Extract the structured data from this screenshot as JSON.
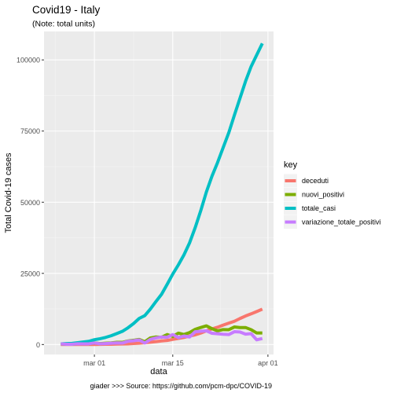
{
  "chart_data": {
    "type": "line",
    "title": "Covid19 - Italy",
    "subtitle": "(Note: total units)",
    "xlabel": "data",
    "ylabel": "Total Covid-19 cases",
    "caption": "giader >>> Source: https://github.com/pcm-dpc/COVID-19",
    "x_range": [
      "2020-02-21",
      "2020-04-02"
    ],
    "ylim": [
      -3500,
      110000
    ],
    "x_ticks": [
      {
        "date": "2020-03-01",
        "label": "mar 01"
      },
      {
        "date": "2020-03-15",
        "label": "mar 15"
      },
      {
        "date": "2020-04-01",
        "label": "apr 01"
      }
    ],
    "y_ticks": [
      {
        "value": 0,
        "label": "0"
      },
      {
        "value": 25000,
        "label": "25000"
      },
      {
        "value": 50000,
        "label": "50000"
      },
      {
        "value": 75000,
        "label": "75000"
      },
      {
        "value": 100000,
        "label": "100000"
      }
    ],
    "x": [
      "2020-02-24",
      "2020-02-25",
      "2020-02-26",
      "2020-02-27",
      "2020-02-28",
      "2020-02-29",
      "2020-03-01",
      "2020-03-02",
      "2020-03-03",
      "2020-03-04",
      "2020-03-05",
      "2020-03-06",
      "2020-03-07",
      "2020-03-08",
      "2020-03-09",
      "2020-03-10",
      "2020-03-11",
      "2020-03-12",
      "2020-03-13",
      "2020-03-14",
      "2020-03-15",
      "2020-03-16",
      "2020-03-17",
      "2020-03-18",
      "2020-03-19",
      "2020-03-20",
      "2020-03-21",
      "2020-03-22",
      "2020-03-23",
      "2020-03-24",
      "2020-03-25",
      "2020-03-26",
      "2020-03-27",
      "2020-03-28",
      "2020-03-29",
      "2020-03-30",
      "2020-03-31"
    ],
    "series": [
      {
        "name": "deceduti",
        "color": "#F8766D",
        "values": [
          7,
          10,
          12,
          17,
          21,
          29,
          34,
          52,
          79,
          107,
          148,
          197,
          233,
          366,
          463,
          631,
          827,
          1016,
          1266,
          1441,
          1809,
          2158,
          2503,
          2978,
          3405,
          4032,
          4825,
          5476,
          6077,
          6820,
          7503,
          8165,
          9134,
          10023,
          10779,
          11591,
          12428
        ]
      },
      {
        "name": "nuovi_positivi",
        "color": "#7CAE00",
        "values": [
          221,
          93,
          78,
          250,
          238,
          240,
          566,
          342,
          466,
          587,
          769,
          778,
          1247,
          1492,
          1797,
          977,
          2313,
          2651,
          2547,
          3497,
          2823,
          4000,
          3526,
          4207,
          5322,
          5986,
          6557,
          5560,
          4789,
          5249,
          5210,
          6153,
          5959,
          5974,
          5217,
          4050,
          4053
        ]
      },
      {
        "name": "totale_casi",
        "color": "#00BFC4",
        "values": [
          229,
          322,
          400,
          650,
          888,
          1128,
          1694,
          2036,
          2502,
          3089,
          3858,
          4636,
          5883,
          7375,
          9172,
          10149,
          12462,
          15113,
          17660,
          21157,
          24747,
          27980,
          31506,
          35713,
          41035,
          47021,
          53578,
          59138,
          63927,
          69176,
          74386,
          80539,
          86498,
          92472,
          97689,
          101739,
          105792
        ]
      },
      {
        "name": "variazione_totale_positivi",
        "color": "#C77CFF",
        "values": [
          221,
          93,
          78,
          250,
          238,
          240,
          561,
          258,
          342,
          466,
          587,
          528,
          1145,
          1326,
          1598,
          529,
          1797,
          2313,
          2651,
          2547,
          3497,
          2470,
          2989,
          2648,
          4480,
          4670,
          4821,
          3957,
          3780,
          3612,
          3491,
          4492,
          4401,
          3651,
          3815,
          1648,
          2107
        ]
      }
    ],
    "legend": {
      "title": "key",
      "position": "right"
    },
    "grid": true
  }
}
